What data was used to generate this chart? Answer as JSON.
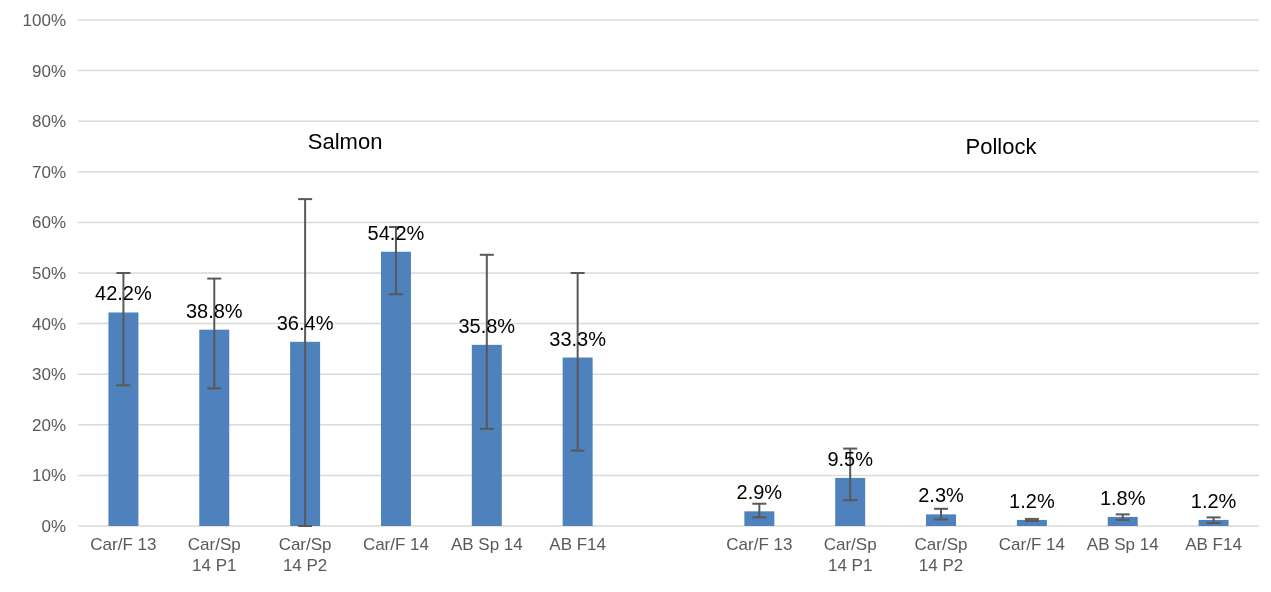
{
  "chart_data": {
    "type": "bar",
    "categories": [
      "Car/F 13",
      "Car/Sp 14 P1",
      "Car/Sp 14 P2",
      "Car/F 14",
      "AB Sp 14",
      "AB F14",
      null,
      "Car/F 13",
      "Car/Sp 14 P1",
      "Car/Sp 14 P2",
      "Car/F 14",
      "AB Sp 14",
      "AB F14"
    ],
    "values": [
      42.2,
      38.8,
      36.4,
      54.2,
      35.8,
      33.3,
      null,
      2.9,
      9.5,
      2.3,
      1.2,
      1.8,
      1.2
    ],
    "color": "#4f81bd",
    "errors": [
      [
        27.8,
        50.0
      ],
      [
        27.2,
        48.9
      ],
      [
        0,
        64.6
      ],
      [
        45.8,
        59.1
      ],
      [
        19.2,
        53.6
      ],
      [
        14.9,
        50.0
      ],
      null,
      [
        1.7,
        4.4
      ],
      [
        5.1,
        15.3
      ],
      [
        1.3,
        3.4
      ],
      [
        1.0,
        1.4
      ],
      [
        1.2,
        2.3
      ],
      [
        0.6,
        1.7
      ]
    ],
    "value_labels": [
      "42.2%",
      "38.8%",
      "36.4%",
      "54.2%",
      "35.8%",
      "33.3%",
      null,
      "2.9%",
      "9.5%",
      "2.3%",
      "1.2%",
      "1.8%",
      "1.2%"
    ],
    "annotations": [
      "Salmon",
      "Pollock"
    ],
    "ylim": [
      0,
      100
    ],
    "yticks": [
      {
        "value": 0,
        "label": "0%"
      },
      {
        "value": 10,
        "label": "10%"
      },
      {
        "value": 20,
        "label": "20%"
      },
      {
        "value": 30,
        "label": "30%"
      },
      {
        "value": 40,
        "label": "40%"
      },
      {
        "value": 50,
        "label": "50%"
      },
      {
        "value": 60,
        "label": "60%"
      },
      {
        "value": 70,
        "label": "70%"
      },
      {
        "value": 80,
        "label": "80%"
      },
      {
        "value": 90,
        "label": "90%"
      },
      {
        "value": 100,
        "label": "100%"
      }
    ],
    "grid": "y"
  }
}
